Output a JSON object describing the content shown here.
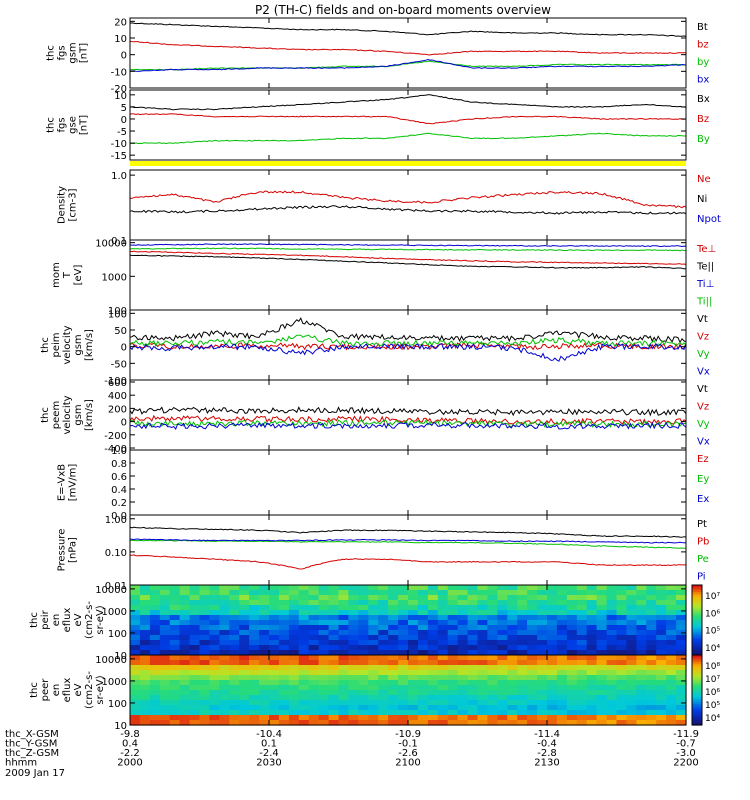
{
  "title": "P2 (TH-C) fields and on-board moments overview",
  "date_label": "2009 Jan 17",
  "colors": {
    "black": "#000000",
    "red": "#d40000",
    "green": "#00c000",
    "blue": "#0000d0",
    "yellow": "#ffff00",
    "frame": "#000000"
  },
  "chart_data": [
    {
      "id": "fgs_gsm",
      "type": "line",
      "ylabel_lines": [
        "thc",
        "fgs",
        "gsm",
        "[nT]"
      ],
      "ylim": [
        -20,
        22
      ],
      "yscale": "linear",
      "yticks": [
        20,
        10,
        0,
        -10,
        -20
      ],
      "ytick_labels": [
        "20",
        "10",
        "0",
        "-10",
        "-20"
      ],
      "series": [
        {
          "name": "Bt",
          "color": "black",
          "values": [
            19,
            18,
            17,
            16,
            15,
            15,
            14,
            12,
            14,
            13,
            13,
            12,
            12,
            11
          ]
        },
        {
          "name": "bz",
          "color": "red",
          "values": [
            8,
            6,
            5,
            4,
            3,
            3,
            2,
            0,
            2,
            2,
            2,
            1,
            1,
            1
          ]
        },
        {
          "name": "by",
          "color": "green",
          "values": [
            -9,
            -9,
            -8,
            -8,
            -8,
            -7,
            -7,
            -4,
            -7,
            -7,
            -6,
            -6,
            -6,
            -6
          ]
        },
        {
          "name": "bx",
          "color": "blue",
          "values": [
            -10,
            -9,
            -9,
            -8,
            -8,
            -8,
            -7,
            -3,
            -8,
            -8,
            -7,
            -7,
            -7,
            -6
          ]
        }
      ],
      "legend_placement": "right"
    },
    {
      "id": "fgs_gse",
      "type": "line",
      "ylabel_lines": [
        "thc",
        "fgs",
        "gse",
        "[nT]"
      ],
      "ylim": [
        -17,
        12
      ],
      "yscale": "linear",
      "yticks": [
        10,
        5,
        0,
        -5,
        -10,
        -15
      ],
      "ytick_labels": [
        "10",
        "5",
        "0",
        "-5",
        "-10",
        "-15"
      ],
      "series": [
        {
          "name": "Bx",
          "color": "black",
          "values": [
            5,
            4,
            4,
            5,
            6,
            7,
            8,
            10,
            7,
            6,
            5,
            5,
            6,
            5
          ]
        },
        {
          "name": "Bz",
          "color": "red",
          "values": [
            2,
            2,
            1,
            1,
            1,
            1,
            1,
            -2,
            0,
            1,
            1,
            0,
            0,
            0
          ]
        },
        {
          "name": "By",
          "color": "green",
          "values": [
            -10,
            -10,
            -9,
            -9,
            -9,
            -8,
            -8,
            -6,
            -8,
            -8,
            -7,
            -6,
            -7,
            -7
          ]
        }
      ],
      "legend_placement": "right"
    },
    {
      "id": "density",
      "type": "line",
      "ylabel_lines": [
        "Density",
        "[cm-3]"
      ],
      "ylim": [
        0.1,
        1.2
      ],
      "yscale": "log",
      "yticks": [
        1.0,
        0.1
      ],
      "ytick_labels": [
        "1.0",
        "0.1"
      ],
      "series": [
        {
          "name": "Ne",
          "color": "red",
          "values": [
            0.45,
            0.5,
            0.38,
            0.55,
            0.55,
            0.45,
            0.4,
            0.38,
            0.45,
            0.5,
            0.55,
            0.52,
            0.35,
            0.32
          ]
        },
        {
          "name": "Ni",
          "color": "black",
          "values": [
            0.28,
            0.27,
            0.28,
            0.3,
            0.32,
            0.33,
            0.3,
            0.28,
            0.28,
            0.27,
            0.26,
            0.27,
            0.26,
            0.26
          ]
        },
        {
          "name": "Npot",
          "color": "blue",
          "values": []
        }
      ],
      "legend_placement": "right"
    },
    {
      "id": "temperature",
      "type": "line",
      "ylabel_lines": [
        "mom",
        "T",
        "[eV]"
      ],
      "ylim": [
        100,
        12000
      ],
      "yscale": "log",
      "yticks": [
        10000,
        1000,
        100
      ],
      "ytick_labels": [
        "10000",
        "1000",
        "100"
      ],
      "series": [
        {
          "name": "Te⊥",
          "color": "red",
          "values": [
            5500,
            5200,
            4800,
            4500,
            4200,
            3800,
            3400,
            3100,
            2900,
            2700,
            2600,
            2500,
            2400,
            2300
          ]
        },
        {
          "name": "Te||",
          "color": "black",
          "values": [
            4200,
            4000,
            3800,
            3500,
            3200,
            2800,
            2500,
            2200,
            2000,
            1900,
            1800,
            1800,
            1900,
            1700
          ]
        },
        {
          "name": "Ti⊥",
          "color": "blue",
          "values": [
            8500,
            8700,
            9000,
            9000,
            8800,
            8600,
            8500,
            8300,
            8200,
            8100,
            8000,
            8000,
            7900,
            7900
          ]
        },
        {
          "name": "Ti||",
          "color": "green",
          "values": [
            6500,
            6700,
            6800,
            6700,
            6500,
            6400,
            6300,
            6200,
            6100,
            6100,
            6000,
            6000,
            6000,
            5900
          ]
        }
      ],
      "legend_placement": "right"
    },
    {
      "id": "peim_velocity",
      "type": "line",
      "ylabel_lines": [
        "thc",
        "peim",
        "velocity",
        "gsm",
        "[km/s]"
      ],
      "ylim": [
        -100,
        110
      ],
      "yscale": "linear",
      "yticks": [
        100,
        50,
        0,
        -50,
        -100
      ],
      "ytick_labels": [
        "100",
        "50",
        "0",
        "-50",
        "-100"
      ],
      "series": [
        {
          "name": "Vt",
          "color": "black",
          "values": [
            30,
            25,
            40,
            30,
            80,
            30,
            28,
            25,
            25,
            25,
            40,
            30,
            25,
            20
          ]
        },
        {
          "name": "Vz",
          "color": "red",
          "values": [
            5,
            0,
            0,
            5,
            0,
            0,
            0,
            0,
            5,
            0,
            0,
            5,
            0,
            0
          ]
        },
        {
          "name": "Vy",
          "color": "green",
          "values": [
            10,
            10,
            15,
            10,
            30,
            10,
            10,
            10,
            10,
            10,
            20,
            10,
            10,
            10
          ]
        },
        {
          "name": "Vx",
          "color": "blue",
          "values": [
            0,
            -5,
            0,
            0,
            -20,
            0,
            0,
            0,
            0,
            -5,
            -40,
            0,
            0,
            0
          ]
        }
      ],
      "legend_placement": "right"
    },
    {
      "id": "peem_velocity",
      "type": "line",
      "ylabel_lines": [
        "thc",
        "peem",
        "velocity",
        "gsm",
        "[km/s]"
      ],
      "ylim": [
        -430,
        630
      ],
      "yscale": "linear",
      "yticks": [
        600,
        400,
        200,
        0,
        -200,
        -400
      ],
      "ytick_labels": [
        "600",
        "400",
        "200",
        "0",
        "-200",
        "-400"
      ],
      "series": [
        {
          "name": "Vt",
          "color": "black",
          "values": [
            150,
            180,
            170,
            160,
            180,
            170,
            160,
            150,
            140,
            140,
            150,
            150,
            140,
            140
          ]
        },
        {
          "name": "Vz",
          "color": "red",
          "values": [
            40,
            50,
            40,
            40,
            30,
            40,
            30,
            20,
            10,
            0,
            0,
            0,
            0,
            0
          ]
        },
        {
          "name": "Vy",
          "color": "green",
          "values": [
            -20,
            -30,
            -30,
            -20,
            -30,
            -20,
            -20,
            -20,
            -30,
            -40,
            -40,
            -40,
            -40,
            -30
          ]
        },
        {
          "name": "Vx",
          "color": "blue",
          "values": [
            -60,
            -70,
            -70,
            -60,
            -60,
            -60,
            -60,
            -50,
            -60,
            -60,
            -70,
            -70,
            -60,
            -60
          ]
        }
      ],
      "legend_placement": "right"
    },
    {
      "id": "e_vxb",
      "type": "line",
      "ylabel_lines": [
        "E=-VxB",
        "[mV/m]"
      ],
      "ylim": [
        0.0,
        1.0
      ],
      "yscale": "linear",
      "yticks": [
        1.0,
        0.8,
        0.6,
        0.4,
        0.2,
        0.0
      ],
      "ytick_labels": [
        "1.0",
        "0.8",
        "0.6",
        "0.4",
        "0.2",
        "0.0"
      ],
      "series": [
        {
          "name": "Ez",
          "color": "red",
          "values": []
        },
        {
          "name": "Ey",
          "color": "green",
          "values": []
        },
        {
          "name": "Ex",
          "color": "blue",
          "values": []
        }
      ],
      "legend_placement": "right"
    },
    {
      "id": "pressure",
      "type": "line",
      "ylabel_lines": [
        "Pressure",
        "[nPa]"
      ],
      "ylim": [
        0.01,
        1.3
      ],
      "yscale": "log",
      "yticks": [
        1.0,
        0.1,
        0.01
      ],
      "ytick_labels": [
        "1.00",
        "0.10",
        "0.01"
      ],
      "series": [
        {
          "name": "Pt",
          "color": "black",
          "values": [
            0.55,
            0.5,
            0.48,
            0.45,
            0.38,
            0.45,
            0.45,
            0.42,
            0.4,
            0.38,
            0.35,
            0.3,
            0.3,
            0.28
          ]
        },
        {
          "name": "Pb",
          "color": "red",
          "values": [
            0.08,
            0.07,
            0.06,
            0.05,
            0.03,
            0.06,
            0.06,
            0.05,
            0.05,
            0.05,
            0.05,
            0.04,
            0.04,
            0.04
          ]
        },
        {
          "name": "Pe",
          "color": "green",
          "values": [
            0.22,
            0.22,
            0.21,
            0.21,
            0.2,
            0.2,
            0.2,
            0.19,
            0.19,
            0.18,
            0.17,
            0.15,
            0.14,
            0.13
          ]
        },
        {
          "name": "Pi",
          "color": "blue",
          "values": [
            0.24,
            0.23,
            0.22,
            0.22,
            0.22,
            0.23,
            0.23,
            0.22,
            0.22,
            0.21,
            0.21,
            0.2,
            0.19,
            0.19
          ]
        }
      ],
      "legend_placement": "right"
    },
    {
      "id": "peir_spectrogram",
      "type": "heatmap",
      "ylabel_lines": [
        "thc",
        "peir",
        "en",
        "eflux",
        "eV",
        "(cm2-s-",
        "sr-eV)"
      ],
      "ylim": [
        10,
        15000
      ],
      "yscale": "log",
      "yticks": [
        10000,
        1000,
        100,
        10
      ],
      "ytick_labels": [
        "10000",
        "1000",
        "100",
        "10"
      ],
      "colorbar_ticks": [
        "10⁷",
        "10⁶",
        "10⁵",
        "10⁴"
      ]
    },
    {
      "id": "peer_spectrogram",
      "type": "heatmap",
      "ylabel_lines": [
        "thc",
        "peer",
        "en",
        "eflux",
        "eV",
        "(cm2-s-",
        "sr-eV)"
      ],
      "ylim": [
        10,
        15000
      ],
      "yscale": "log",
      "yticks": [
        10000,
        1000,
        100,
        10
      ],
      "ytick_labels": [
        "10000",
        "1000",
        "100",
        "10"
      ],
      "colorbar_ticks": [
        "10⁸",
        "10⁷",
        "10⁶",
        "10⁵",
        "10⁴"
      ]
    }
  ],
  "x_axis": {
    "row_labels": [
      "thc_X-GSM",
      "thc_Y-GSM",
      "thc_Z-GSM",
      "hhmm"
    ],
    "ticks": [
      {
        "X": "-9.8",
        "Y": "0.4",
        "Z": "-2.2",
        "hhmm": "2000"
      },
      {
        "X": "-10.4",
        "Y": "0.1",
        "Z": "-2.4",
        "hhmm": "2030"
      },
      {
        "X": "-10.9",
        "Y": "-0.1",
        "Z": "-2.6",
        "hhmm": "2100"
      },
      {
        "X": "-11.4",
        "Y": "-0.4",
        "Z": "-2.8",
        "hhmm": "2130"
      },
      {
        "X": "-11.9",
        "Y": "-0.7",
        "Z": "-3.0",
        "hhmm": "2200"
      }
    ]
  }
}
